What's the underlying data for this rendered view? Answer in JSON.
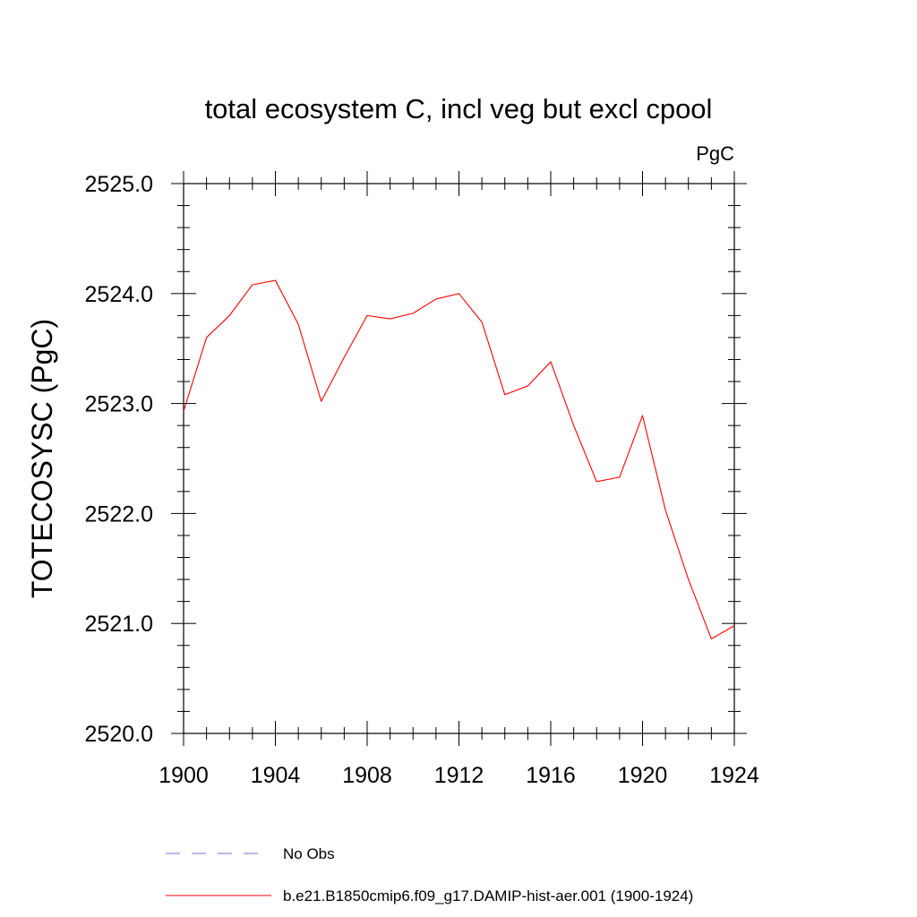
{
  "chart_data": {
    "type": "line",
    "title": "total ecosystem C, incl veg but excl cpool",
    "units_label": "PgC",
    "ylabel": "TOTECOSYSC  (PgC)",
    "xlabel": "",
    "xlim": [
      1900,
      1924
    ],
    "ylim": [
      2520.0,
      2525.0
    ],
    "x_ticks": [
      "1900",
      "1904",
      "1908",
      "1912",
      "1916",
      "1920",
      "1924"
    ],
    "y_ticks": [
      "2520.0",
      "2521.0",
      "2522.0",
      "2523.0",
      "2524.0",
      "2525.0"
    ],
    "grid": false,
    "legend_position": "bottom",
    "series": [
      {
        "name": "b.e21.B1850cmip6.f09_g17.DAMIP-hist-aer.001 (1900-1924)",
        "color": "#ff0000",
        "style": "solid",
        "x": [
          1900,
          1901,
          1902,
          1903,
          1904,
          1905,
          1906,
          1907,
          1908,
          1909,
          1910,
          1911,
          1912,
          1913,
          1914,
          1915,
          1916,
          1917,
          1918,
          1919,
          1920,
          1921,
          1922,
          1923,
          1924
        ],
        "values": [
          2522.93,
          2523.6,
          2523.8,
          2524.08,
          2524.12,
          2523.72,
          2523.02,
          2523.42,
          2523.8,
          2523.77,
          2523.82,
          2523.95,
          2524.0,
          2523.74,
          2523.08,
          2523.16,
          2523.38,
          2522.8,
          2522.29,
          2522.33,
          2522.89,
          2522.03,
          2521.4,
          2520.86,
          2520.98
        ]
      }
    ],
    "legend": [
      {
        "label": "No Obs",
        "color": "#7b6fd6",
        "style": "dashed"
      },
      {
        "label": "b.e21.B1850cmip6.f09_g17.DAMIP-hist-aer.001 (1900-1924)",
        "color": "#ff0000",
        "style": "solid"
      }
    ]
  }
}
